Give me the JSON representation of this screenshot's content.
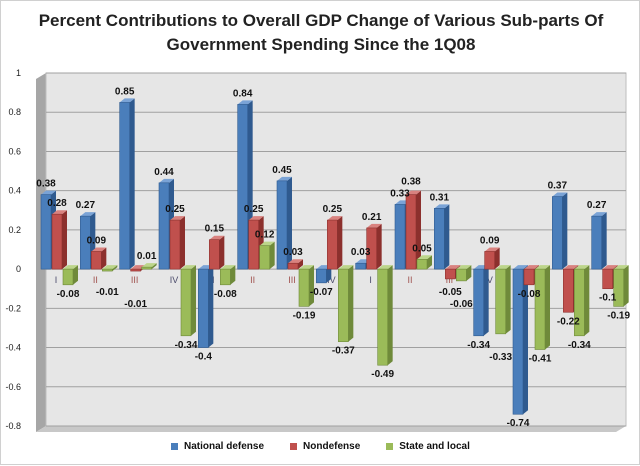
{
  "chart_data": {
    "type": "bar",
    "title": "Percent Contributions to Overall GDP Change of Various Sub-parts Of Government Spending Since the 1Q08",
    "title_lines": [
      "Percent Contributions to Overall GDP Change of Various Sub-parts Of",
      "Government Spending Since the 1Q08"
    ],
    "categories": [
      "I",
      "II",
      "III",
      "IV",
      "I",
      "II",
      "III",
      "IV",
      "I",
      "II",
      "III",
      "IV",
      "I",
      "II",
      "III"
    ],
    "series": [
      {
        "name": "National defense",
        "color": "#4a7ebb",
        "values": [
          0.38,
          0.27,
          0.85,
          0.44,
          -0.4,
          0.84,
          0.45,
          -0.07,
          0.03,
          0.33,
          0.31,
          -0.34,
          -0.74,
          0.37,
          0.27
        ]
      },
      {
        "name": "Nondefense",
        "color": "#c0504d",
        "values": [
          0.28,
          0.09,
          -0.01,
          0.25,
          0.15,
          0.25,
          0.03,
          0.25,
          0.21,
          0.38,
          -0.05,
          0.09,
          -0.08,
          -0.22,
          -0.1
        ]
      },
      {
        "name": "State and local",
        "color": "#9bbb59",
        "values": [
          -0.08,
          -0.01,
          0.01,
          -0.34,
          -0.08,
          0.12,
          -0.19,
          -0.37,
          -0.49,
          0.05,
          -0.06,
          -0.33,
          -0.41,
          -0.34,
          -0.19
        ]
      }
    ],
    "yticks": [
      "1",
      "0.8",
      "0.6",
      "0.4",
      "0.2",
      "0",
      "-0.2",
      "-0.4",
      "-0.6",
      "-0.8"
    ],
    "ylim": [
      -0.8,
      1
    ],
    "grid": true,
    "legend": "bottom",
    "three_d": true
  }
}
